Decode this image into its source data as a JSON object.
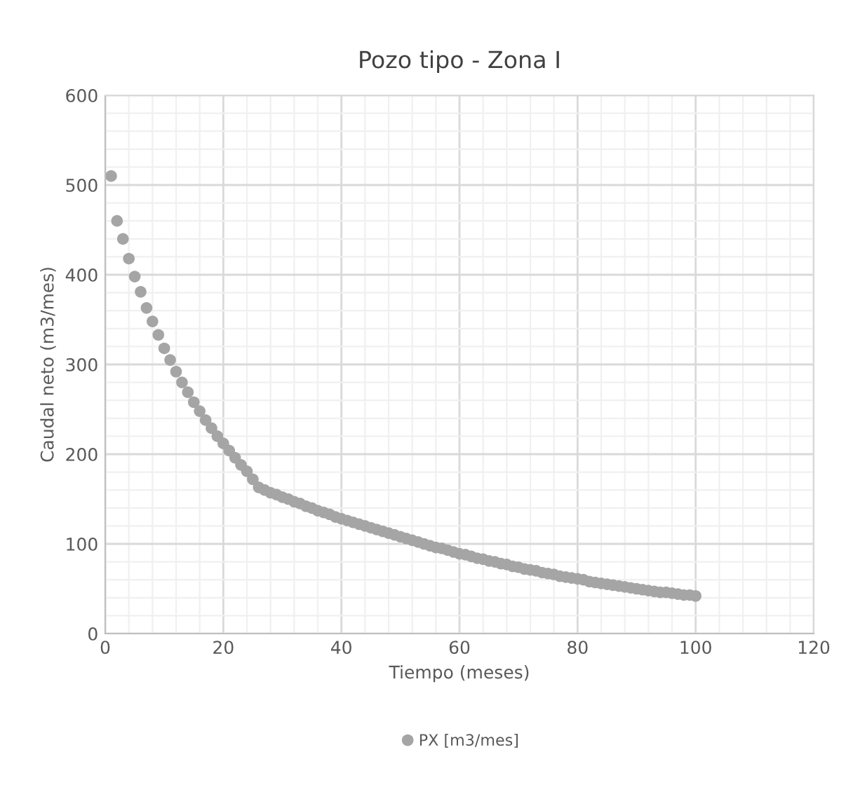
{
  "chart_data": {
    "type": "scatter",
    "title": "Pozo tipo - Zona I",
    "xlabel": "Tiempo (meses)",
    "ylabel": "Caudal neto (m3/mes)",
    "x": [
      1,
      2,
      3,
      4,
      5,
      6,
      7,
      8,
      9,
      10,
      11,
      12,
      13,
      14,
      15,
      16,
      17,
      18,
      19,
      20,
      21,
      22,
      23,
      24,
      25,
      26,
      27,
      28,
      29,
      30,
      31,
      32,
      33,
      34,
      35,
      36,
      37,
      38,
      39,
      40,
      41,
      42,
      43,
      44,
      45,
      46,
      47,
      48,
      49,
      50,
      51,
      52,
      53,
      54,
      55,
      56,
      57,
      58,
      59,
      60,
      61,
      62,
      63,
      64,
      65,
      66,
      67,
      68,
      69,
      70,
      71,
      72,
      73,
      74,
      75,
      76,
      77,
      78,
      79,
      80,
      81,
      82,
      83,
      84,
      85,
      86,
      87,
      88,
      89,
      90,
      91,
      92,
      93,
      94,
      95,
      96,
      97,
      98,
      99,
      100
    ],
    "series": [
      {
        "name": "PX [m3/mes]",
        "color": "#a5a5a5",
        "values": [
          510,
          460,
          440,
          418,
          398,
          381,
          363,
          348,
          333,
          318,
          305,
          292,
          280,
          269,
          258,
          248,
          238,
          229,
          220,
          212,
          204,
          196,
          188,
          181,
          172,
          163,
          160,
          157,
          155,
          152,
          150,
          147,
          145,
          142,
          140,
          137,
          135,
          133,
          130,
          128,
          126,
          124,
          122,
          120,
          118,
          116,
          114,
          112,
          110,
          108,
          106,
          104,
          102,
          100,
          98,
          96,
          95,
          93,
          91,
          89,
          88,
          86,
          84,
          83,
          81,
          80,
          78,
          77,
          75,
          74,
          72,
          71,
          70,
          68,
          67,
          66,
          64,
          63,
          62,
          61,
          60,
          58,
          57,
          56,
          55,
          54,
          53,
          52,
          51,
          50,
          49,
          48,
          47,
          46,
          46,
          45,
          44,
          43,
          43,
          42
        ]
      }
    ],
    "xlim": [
      0,
      120
    ],
    "xticks": [
      0,
      20,
      40,
      60,
      80,
      100,
      120
    ],
    "ylim": [
      0,
      600
    ],
    "yticks": [
      0,
      100,
      200,
      300,
      400,
      500,
      600
    ],
    "grid": true,
    "legend": "bottom",
    "marker": "circle"
  }
}
